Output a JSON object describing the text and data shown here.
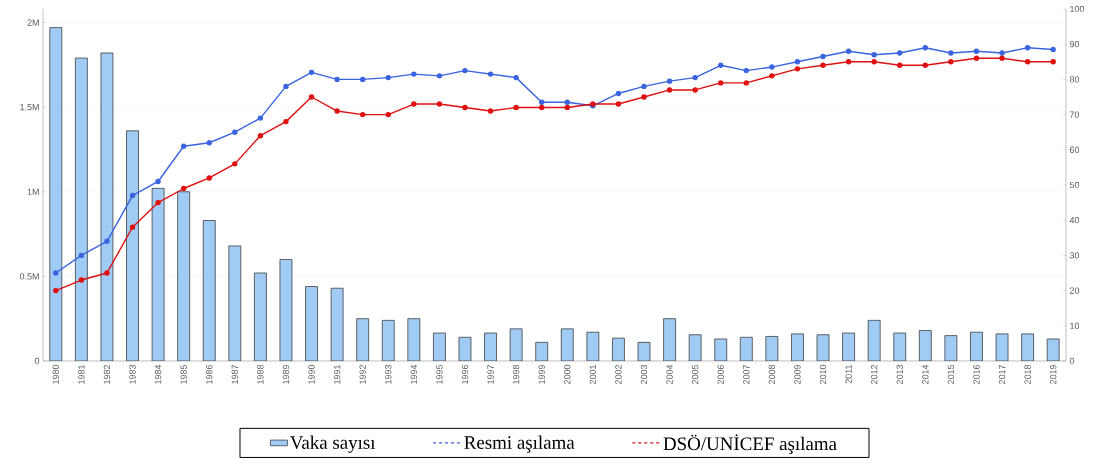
{
  "chart_data": {
    "type": "bar",
    "categories": [
      "1980",
      "1981",
      "1982",
      "1983",
      "1984",
      "1985",
      "1986",
      "1987",
      "1988",
      "1989",
      "1990",
      "1991",
      "1992",
      "1993",
      "1994",
      "1995",
      "1996",
      "1997",
      "1998",
      "1999",
      "2000",
      "2001",
      "2002",
      "2003",
      "2004",
      "2005",
      "2006",
      "2007",
      "2008",
      "2009",
      "2010",
      "2011",
      "2012",
      "2013",
      "2014",
      "2015",
      "2016",
      "2017",
      "2018",
      "2019"
    ],
    "series": [
      {
        "name": "Vaka sayısı",
        "color": "#9fcbf5",
        "values": [
          1970000,
          1790000,
          1820000,
          1360000,
          1020000,
          1000000,
          830000,
          680000,
          520000,
          600000,
          440000,
          430000,
          250000,
          240000,
          250000,
          165000,
          140000,
          165000,
          190000,
          110000,
          190000,
          170000,
          135000,
          110000,
          250000,
          155000,
          130000,
          140000,
          145000,
          160000,
          155000,
          165000,
          240000,
          165000,
          180000,
          150000,
          170000,
          160000,
          160000,
          130000
        ]
      },
      {
        "name": "Resmi aşılama",
        "type": "line",
        "axis": "y2",
        "color": "#3a64e0",
        "values": [
          25,
          30,
          34,
          47,
          51,
          61,
          62,
          65,
          69,
          78,
          82,
          80,
          80,
          80.5,
          81.5,
          81,
          82.5,
          81.5,
          80.5,
          73.5,
          73.5,
          72.5,
          76,
          78,
          79.5,
          80.5,
          84,
          82.5,
          83.5,
          85,
          86.5,
          88,
          87,
          87.5,
          89,
          87.5,
          88,
          87.5,
          89,
          88.5
        ]
      },
      {
        "name": "DSÖ/UNİCEF aşılama",
        "type": "line",
        "axis": "y2",
        "color": "#e01010",
        "values": [
          20,
          23,
          25,
          38,
          45,
          49,
          52,
          56,
          64,
          68,
          75,
          71,
          70,
          70,
          73,
          73,
          72,
          71,
          72,
          72,
          72,
          73,
          73,
          75,
          77,
          77,
          79,
          79,
          81,
          83,
          84,
          85,
          85,
          84,
          84,
          85,
          86,
          86,
          85,
          85
        ]
      }
    ],
    "ylim": [
      0,
      2080000
    ],
    "yticks": [
      0,
      {
        "value": 500000,
        "label": "0.5M"
      },
      {
        "value": 1000000,
        "label": "1M"
      },
      {
        "value": 1500000,
        "label": "1.5M"
      },
      {
        "value": 2000000,
        "label": "2M"
      }
    ],
    "y2lim": [
      0,
      100
    ],
    "y2ticks": [
      0,
      10,
      20,
      30,
      40,
      50,
      60,
      70,
      80,
      90,
      100
    ],
    "grid": "y",
    "legend": "bottom",
    "marker": "circle",
    "line_style": "solid"
  }
}
